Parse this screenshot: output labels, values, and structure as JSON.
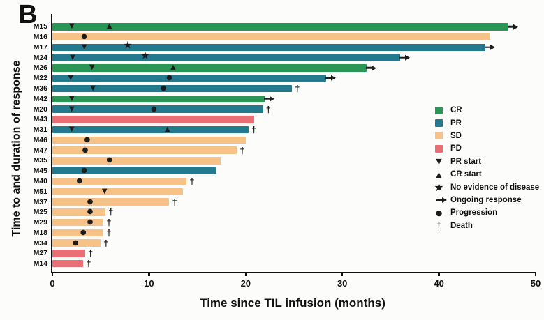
{
  "panel_letter": "B",
  "y_axis_title": "Time to and duration of response",
  "x_axis_title": "Time since TIL infusion (months)",
  "chart_data": {
    "type": "bar",
    "orientation": "horizontal",
    "title": "",
    "xlabel": "Time since TIL infusion (months)",
    "ylabel": "Time to and duration of response",
    "xlim": [
      0,
      50
    ],
    "x_ticks": [
      0,
      10,
      20,
      30,
      40,
      50
    ],
    "grid": false,
    "legend_position": "right",
    "colors": {
      "CR": "#2a9655",
      "PR": "#23798e",
      "SD": "#f7c287",
      "PD": "#e96e76",
      "marker": "#1c1c1c"
    },
    "patients": [
      {
        "id": "M15",
        "response": "CR",
        "duration": 47.2,
        "end_marker": "ongoing",
        "markers": [
          {
            "type": "pr_start",
            "x": 2.0
          },
          {
            "type": "cr_start",
            "x": 5.9
          }
        ]
      },
      {
        "id": "M16",
        "response": "SD",
        "duration": 45.3,
        "end_marker": "none",
        "markers": [
          {
            "type": "progression",
            "x": 3.3
          }
        ]
      },
      {
        "id": "M17",
        "response": "PR",
        "duration": 44.8,
        "end_marker": "ongoing",
        "markers": [
          {
            "type": "pr_start",
            "x": 3.3
          },
          {
            "type": "ned",
            "x": 7.8
          }
        ]
      },
      {
        "id": "M24",
        "response": "PR",
        "duration": 36.0,
        "end_marker": "ongoing",
        "markers": [
          {
            "type": "pr_start",
            "x": 2.1
          },
          {
            "type": "ned",
            "x": 9.6
          }
        ]
      },
      {
        "id": "M26",
        "response": "CR",
        "duration": 32.5,
        "end_marker": "ongoing",
        "markers": [
          {
            "type": "pr_start",
            "x": 4.1
          },
          {
            "type": "cr_start",
            "x": 12.5
          }
        ]
      },
      {
        "id": "M22",
        "response": "PR",
        "duration": 28.3,
        "end_marker": "ongoing",
        "markers": [
          {
            "type": "pr_start",
            "x": 1.9
          },
          {
            "type": "progression",
            "x": 12.1
          }
        ]
      },
      {
        "id": "M36",
        "response": "PR",
        "duration": 24.8,
        "end_marker": "death",
        "markers": [
          {
            "type": "pr_start",
            "x": 4.2
          },
          {
            "type": "progression",
            "x": 11.5
          }
        ]
      },
      {
        "id": "M42",
        "response": "CR",
        "duration": 22.0,
        "end_marker": "ongoing",
        "markers": [
          {
            "type": "pr_start",
            "x": 2.0
          }
        ]
      },
      {
        "id": "M20",
        "response": "PR",
        "duration": 21.8,
        "end_marker": "death",
        "markers": [
          {
            "type": "pr_start",
            "x": 2.0
          },
          {
            "type": "progression",
            "x": 10.5
          }
        ]
      },
      {
        "id": "M43",
        "response": "PD",
        "duration": 20.9,
        "end_marker": "none",
        "markers": []
      },
      {
        "id": "M31",
        "response": "PR",
        "duration": 20.3,
        "end_marker": "death",
        "markers": [
          {
            "type": "pr_start",
            "x": 2.0
          },
          {
            "type": "cr_start",
            "x": 11.9
          }
        ]
      },
      {
        "id": "M46",
        "response": "SD",
        "duration": 20.0,
        "end_marker": "none",
        "markers": [
          {
            "type": "progression",
            "x": 3.6
          }
        ]
      },
      {
        "id": "M47",
        "response": "SD",
        "duration": 19.1,
        "end_marker": "death",
        "markers": [
          {
            "type": "progression",
            "x": 3.4
          }
        ]
      },
      {
        "id": "M35",
        "response": "SD",
        "duration": 17.4,
        "end_marker": "none",
        "markers": [
          {
            "type": "progression",
            "x": 5.9
          }
        ]
      },
      {
        "id": "M45",
        "response": "PR",
        "duration": 16.9,
        "end_marker": "none",
        "markers": [
          {
            "type": "progression",
            "x": 3.3
          }
        ]
      },
      {
        "id": "M40",
        "response": "SD",
        "duration": 13.9,
        "end_marker": "death",
        "markers": [
          {
            "type": "progression",
            "x": 2.8
          }
        ]
      },
      {
        "id": "M51",
        "response": "SD",
        "duration": 13.5,
        "end_marker": "none",
        "markers": [
          {
            "type": "pr_start",
            "x": 5.4
          }
        ]
      },
      {
        "id": "M37",
        "response": "SD",
        "duration": 12.1,
        "end_marker": "death",
        "markers": [
          {
            "type": "progression",
            "x": 3.9
          }
        ]
      },
      {
        "id": "M25",
        "response": "SD",
        "duration": 5.5,
        "end_marker": "death",
        "markers": [
          {
            "type": "progression",
            "x": 3.9
          }
        ]
      },
      {
        "id": "M29",
        "response": "SD",
        "duration": 5.3,
        "end_marker": "death",
        "markers": [
          {
            "type": "progression",
            "x": 3.9
          }
        ]
      },
      {
        "id": "M18",
        "response": "SD",
        "duration": 5.3,
        "end_marker": "death",
        "markers": [
          {
            "type": "progression",
            "x": 3.2
          }
        ]
      },
      {
        "id": "M34",
        "response": "SD",
        "duration": 5.0,
        "end_marker": "death",
        "markers": [
          {
            "type": "progression",
            "x": 2.4
          }
        ]
      },
      {
        "id": "M27",
        "response": "PD",
        "duration": 3.4,
        "end_marker": "death",
        "markers": []
      },
      {
        "id": "M14",
        "response": "PD",
        "duration": 3.2,
        "end_marker": "death",
        "markers": []
      }
    ],
    "legend": [
      {
        "label": "CR",
        "symbol": "swatch",
        "swatch": "CR"
      },
      {
        "label": "PR",
        "symbol": "swatch",
        "swatch": "PR"
      },
      {
        "label": "SD",
        "symbol": "swatch",
        "swatch": "SD"
      },
      {
        "label": "PD",
        "symbol": "swatch",
        "swatch": "PD"
      },
      {
        "label": "PR start",
        "symbol": "triangle-down"
      },
      {
        "label": "CR start",
        "symbol": "triangle-up"
      },
      {
        "label": "No evidence of disease",
        "symbol": "star"
      },
      {
        "label": "Ongoing response",
        "symbol": "arrow"
      },
      {
        "label": "Progression",
        "symbol": "circle"
      },
      {
        "label": "Death",
        "symbol": "dagger"
      }
    ]
  }
}
